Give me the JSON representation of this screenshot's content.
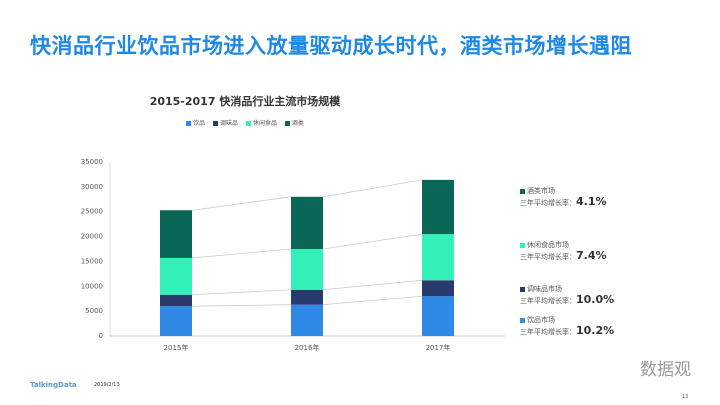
{
  "title": "快消品行业饮品市场进入放量驱动成长时代，酒类市场增长遇阻",
  "chart_data": {
    "type": "bar",
    "stacked": true,
    "title": "2015-2017  快消品行业主流市场规模",
    "categories": [
      "2015年",
      "2016年",
      "2017年"
    ],
    "series": [
      {
        "name": "饮品",
        "color": "#2e8ae6",
        "values": [
          6000,
          6300,
          8000
        ]
      },
      {
        "name": "调味品",
        "color": "#2b3a6e",
        "values": [
          2300,
          3000,
          3200
        ]
      },
      {
        "name": "休闲食品",
        "color": "#33f0b8",
        "values": [
          7400,
          8200,
          9300
        ]
      },
      {
        "name": "酒类",
        "color": "#0a6656",
        "values": [
          9600,
          10500,
          10900
        ]
      }
    ],
    "ylim": [
      0,
      35000
    ],
    "yticks": [
      "0",
      "5000",
      "10000",
      "15000",
      "20000",
      "25000",
      "30000",
      "35000"
    ],
    "legend": "top",
    "grid": false
  },
  "growth": [
    {
      "label": "酒类市场",
      "prefix": "三年平均增长率：",
      "rate": "4.1%",
      "color": "#0a6656"
    },
    {
      "label": "休闲食品市场",
      "prefix": "三年平均增长率：",
      "rate": "7.4%",
      "color": "#33f0b8"
    },
    {
      "label": "调味品市场",
      "prefix": "三年平均增长率：",
      "rate": "10.0%",
      "color": "#2b3a6e"
    },
    {
      "label": "饮品市场",
      "prefix": "三年平均增长率：",
      "rate": "10.2%",
      "color": "#2e8ae6"
    }
  ],
  "footer": {
    "brand": "TalkingData",
    "date": "2019/2/13",
    "watermark": "数据观",
    "page": "13"
  }
}
